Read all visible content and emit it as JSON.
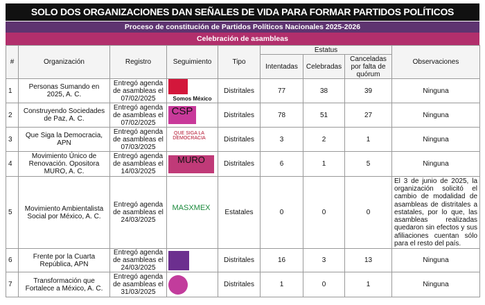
{
  "header": {
    "title": "SOLO DOS ORGANIZACIONES DAN SEÑALES DE VIDA PARA FORMAR PARTIDOS POLÍTICOS",
    "subtitle": "Proceso de constitución de Partidos Políticos Nacionales 2025-2026",
    "section": "Celebración de asambleas"
  },
  "table": {
    "columns": [
      "#",
      "Organización",
      "Registro",
      "Seguimiento",
      "Tipo"
    ],
    "status_group": "Estatus",
    "status_columns": [
      "Intentadas",
      "Celebradas",
      "Canceladas por falta de quórum"
    ],
    "observations_column": "Observaciones",
    "rows": [
      {
        "number": 1,
        "organization": "Personas Sumando en 2025, A. C.",
        "registry": "Entregó agenda de asambleas el 07/02/2025",
        "logo": "Somos México",
        "type": "Distritales",
        "attempted": 77,
        "held": 38,
        "cancelled": 39,
        "observations": "Ninguna"
      },
      {
        "number": 2,
        "organization": "Construyendo Sociedades de Paz, A. C.",
        "registry": "Entregó agenda de asambleas el 07/02/2025",
        "logo": "CSP",
        "type": "Distritales",
        "attempted": 78,
        "held": 51,
        "cancelled": 27,
        "observations": "Ninguna"
      },
      {
        "number": 3,
        "organization": "Que Siga la Democracia, APN",
        "registry": "Entregó agenda de asambleas el 07/03/2025",
        "logo": "QUE SIGA LA DEMOCRACIA",
        "type": "Distritales",
        "attempted": 3,
        "held": 2,
        "cancelled": 1,
        "observations": "Ninguna"
      },
      {
        "number": 4,
        "organization": "Movimiento Único de Renovación. Opositora MURO, A. C.",
        "registry": "Entregó agenda de asambleas el 14/03/2025",
        "logo": "MURO",
        "type": "Distritales",
        "attempted": 6,
        "held": 1,
        "cancelled": 5,
        "observations": "Ninguna"
      },
      {
        "number": 5,
        "organization": "Movimiento Ambientalista Social por México, A. C.",
        "registry": "Entregó agenda de asambleas el 24/03/2025",
        "logo": "MASXMEX",
        "type": "Estatales",
        "attempted": 0,
        "held": 0,
        "cancelled": 0,
        "observations": "El 3 de junio de 2025, la organización solicitó el cambio de modalidad de asambleas de distritales a estatales, por lo que, las asambleas realizadas quedaron sin efectos y sus afiliaciones cuentan sólo para el resto del país."
      },
      {
        "number": 6,
        "organization": "Frente por la Cuarta República, APN",
        "registry": "Entregó agenda de asambleas el 24/03/2025",
        "type": "Distritales",
        "attempted": 16,
        "held": 3,
        "cancelled": 13,
        "observations": "Ninguna"
      },
      {
        "number": 7,
        "organization": "Transformación que Fortalece a México, A. C.",
        "registry": "Entregó agenda de asambleas el 31/03/2025",
        "type": "Distritales",
        "attempted": 1,
        "held": 0,
        "cancelled": 1,
        "observations": "Ninguna"
      }
    ]
  }
}
